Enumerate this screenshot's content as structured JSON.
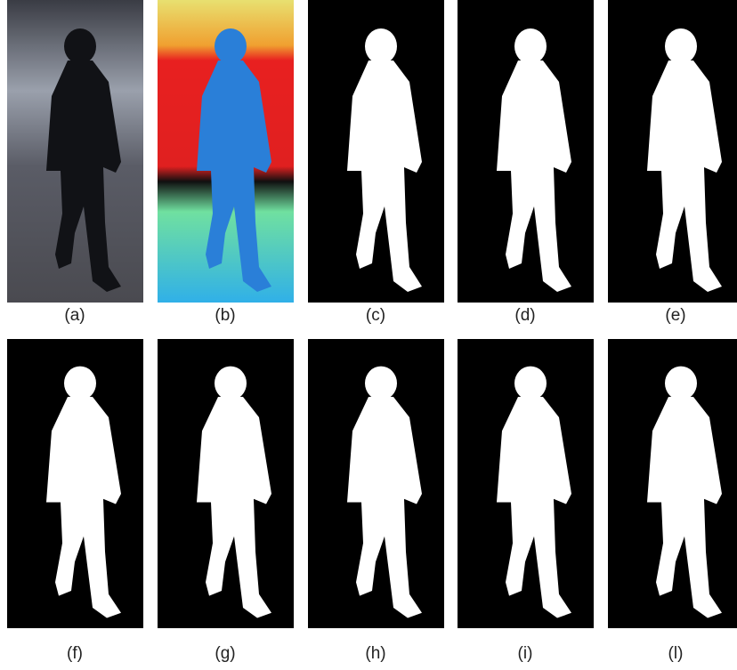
{
  "panels": [
    {
      "label": "(a)"
    },
    {
      "label": "(b)"
    },
    {
      "label": "(c)"
    },
    {
      "label": "(d)"
    },
    {
      "label": "(e)"
    },
    {
      "label": "(f)"
    },
    {
      "label": "(g)"
    },
    {
      "label": "(h)"
    },
    {
      "label": "(i)"
    },
    {
      "label": "(l)"
    }
  ]
}
